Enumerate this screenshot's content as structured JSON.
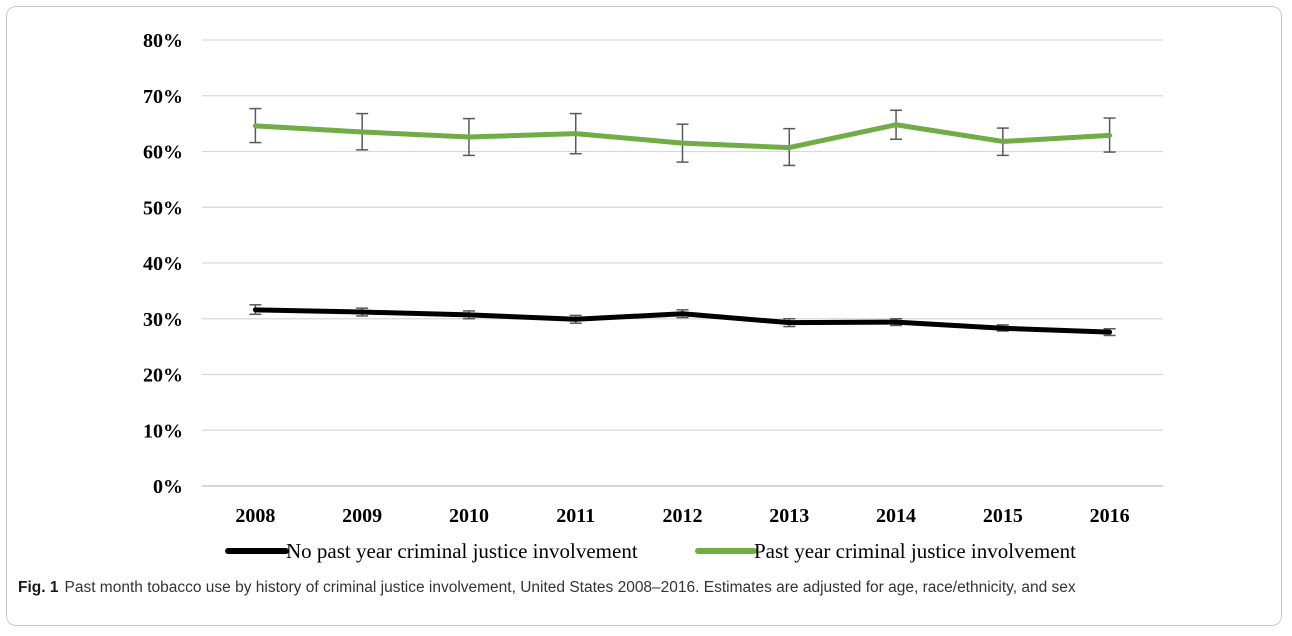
{
  "chart_data": {
    "type": "line",
    "categories": [
      "2008",
      "2009",
      "2010",
      "2011",
      "2012",
      "2013",
      "2014",
      "2015",
      "2016"
    ],
    "y_ticks": [
      "0%",
      "10%",
      "20%",
      "30%",
      "40%",
      "50%",
      "60%",
      "70%",
      "80%"
    ],
    "ylim": [
      0,
      80
    ],
    "grid": true,
    "legend_position": "bottom",
    "series": [
      {
        "name": "No past year criminal justice involvement",
        "color": "#000000",
        "values": [
          31.6,
          31.2,
          30.7,
          29.9,
          30.9,
          29.3,
          29.4,
          28.3,
          27.6
        ],
        "error_low": [
          30.8,
          30.5,
          30.0,
          29.2,
          30.2,
          28.6,
          28.8,
          27.8,
          27.0
        ],
        "error_high": [
          32.5,
          31.9,
          31.4,
          30.6,
          31.6,
          30.0,
          30.0,
          28.9,
          28.2
        ]
      },
      {
        "name": "Past year criminal justice involvement",
        "color": "#70ad47",
        "values": [
          64.6,
          63.5,
          62.6,
          63.2,
          61.5,
          60.7,
          64.8,
          61.8,
          62.9
        ],
        "error_low": [
          61.6,
          60.3,
          59.3,
          59.6,
          58.1,
          57.5,
          62.2,
          59.3,
          59.9
        ],
        "error_high": [
          67.7,
          66.8,
          65.9,
          66.8,
          64.9,
          64.1,
          67.4,
          64.2,
          66.0
        ]
      }
    ]
  },
  "caption": {
    "label": "Fig. 1",
    "text": "Past month tobacco use by history of criminal justice involvement, United States 2008–2016. Estimates are adjusted for age, race/ethnicity, and sex"
  }
}
